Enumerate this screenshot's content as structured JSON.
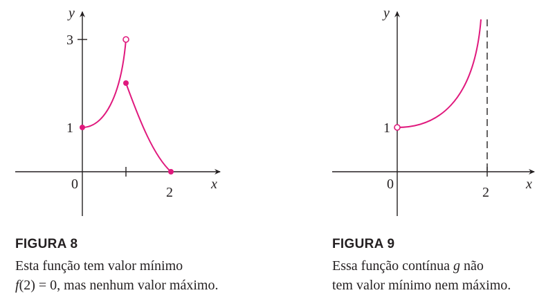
{
  "figures": [
    {
      "id": "fig8",
      "title": "FIGURA 8",
      "caption_line1": "Esta função tem valor mínimo",
      "caption_line2_func": "f",
      "caption_line2_rest": "(2) = 0, mas nenhum valor máximo.",
      "axis_labels": {
        "x": "x",
        "y": "y",
        "origin": "0"
      },
      "ticks": {
        "x": [
          "2"
        ],
        "y": [
          "1",
          "3"
        ]
      },
      "chart_data": {
        "type": "line",
        "xlim": [
          -1.5,
          3.1
        ],
        "ylim": [
          -0.9,
          3.5
        ],
        "segments": [
          {
            "from": [
              0,
              1
            ],
            "to": [
              1,
              3
            ],
            "shape": "convex",
            "start": "closed",
            "end": "open"
          },
          {
            "from": [
              1,
              2
            ],
            "to": [
              2,
              0
            ],
            "shape": "convex-decreasing",
            "start": "closed",
            "end": "closed"
          }
        ],
        "x_ticks": [
          1,
          2
        ],
        "y_ticks": [
          1,
          3
        ],
        "color": "#e0197d"
      }
    },
    {
      "id": "fig9",
      "title": "FIGURA 9",
      "caption_line1_pre": "Essa função contínua ",
      "caption_line1_func": "g",
      "caption_line1_post": " não",
      "caption_line2": "tem valor mínimo nem máximo.",
      "axis_labels": {
        "x": "x",
        "y": "y",
        "origin": "0"
      },
      "ticks": {
        "x": [
          "2"
        ],
        "y": [
          "1"
        ]
      },
      "chart_data": {
        "type": "line",
        "xlim": [
          -1.5,
          3.2
        ],
        "ylim": [
          -0.9,
          3.7
        ],
        "segments": [
          {
            "from": [
              0,
              1
            ],
            "to": [
              1.8,
              3.5
            ],
            "shape": "increasing-to-asymptote",
            "start": "open",
            "end": "unbounded"
          }
        ],
        "asymptote_x": 2,
        "x_ticks": [
          2
        ],
        "y_ticks": [
          1
        ],
        "color": "#e0197d"
      }
    }
  ]
}
